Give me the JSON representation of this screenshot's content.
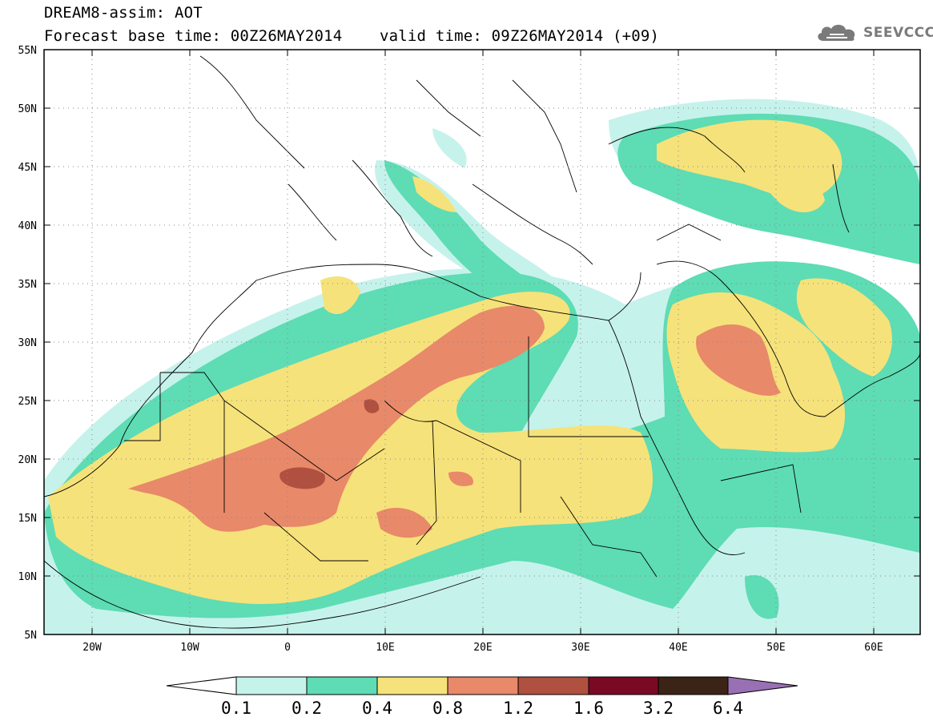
{
  "title": {
    "line1": "DREAM8-assim: AOT",
    "line2": "Forecast base time: 00Z26MAY2014    valid time: 09Z26MAY2014 (+09)"
  },
  "brand": {
    "name": "SEEVCCC",
    "icon": "cloud-logo-icon"
  },
  "map": {
    "projection": "lat-lon",
    "lon_range": [
      -25,
      65
    ],
    "lat_range": [
      5,
      55
    ],
    "grid": "dotted",
    "lat_labels": [
      "55N",
      "50N",
      "45N",
      "40N",
      "35N",
      "30N",
      "25N",
      "20N",
      "15N",
      "10N",
      "5N"
    ],
    "lon_labels": [
      "20W",
      "10W",
      "0",
      "10E",
      "20E",
      "30E",
      "40E",
      "50E",
      "60E"
    ]
  },
  "colorbar": {
    "labels": [
      "0.1",
      "0.2",
      "0.4",
      "0.8",
      "1.2",
      "1.6",
      "3.2",
      "6.4"
    ],
    "colors": [
      "#c6f2ec",
      "#5edcb4",
      "#f6e27a",
      "#e8896a",
      "#b05040",
      "#7a0a24",
      "#3b2416",
      "#9a70b4"
    ],
    "under_color": "#ffffff"
  },
  "field_colors": {
    "c1": "#c6f2ec",
    "c2": "#5edcb4",
    "c3": "#f6e27a",
    "c4": "#e8896a",
    "c5": "#b05040"
  }
}
